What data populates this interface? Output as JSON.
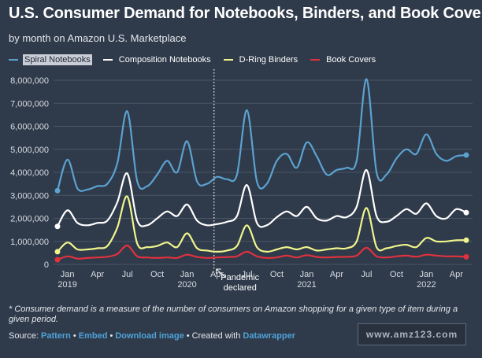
{
  "header": {
    "title": "U.S. Consumer Demand for Notebooks, Binders, and Book Covers",
    "subtitle": "by month on Amazon U.S. Marketplace"
  },
  "footer": {
    "footnote": "* Consumer demand is a measure of the number of consumers on Amazon shopping for a given type of item during a given period.",
    "source_prefix": "Source:",
    "link_pattern": "Pattern",
    "link_embed": "Embed",
    "link_download": "Download image",
    "created_with": "Created with",
    "link_datawrapper": "Datawrapper",
    "separator": "•",
    "watermark": "www.amz123.com"
  },
  "colors": {
    "background": "#2f3a4a",
    "spiral": "#5ba2d0",
    "composition": "#ffffff",
    "dring": "#f0f58c",
    "bookcovers": "#e0323e"
  },
  "chart_data": {
    "type": "line",
    "title": "U.S. Consumer Demand for Notebooks, Binders, and Book Covers",
    "subtitle": "by month on Amazon U.S. Marketplace",
    "xlabel": "",
    "ylabel": "",
    "ylim": [
      0,
      8000000
    ],
    "y_ticks": [
      0,
      1000000,
      2000000,
      3000000,
      4000000,
      5000000,
      6000000,
      7000000,
      8000000
    ],
    "y_tick_labels": [
      "0",
      "1,000,000",
      "2,000,000",
      "3,000,000",
      "4,000,000",
      "5,000,000",
      "6,000,000",
      "7,000,000",
      "8,000,000"
    ],
    "x_tick_labels": [
      {
        "index": 1,
        "label": "Jan",
        "year": "2019"
      },
      {
        "index": 4,
        "label": "Apr",
        "year": ""
      },
      {
        "index": 7,
        "label": "Jul",
        "year": ""
      },
      {
        "index": 10,
        "label": "Oct",
        "year": ""
      },
      {
        "index": 13,
        "label": "Jan",
        "year": "2020"
      },
      {
        "index": 16,
        "label": "Apr",
        "year": ""
      },
      {
        "index": 19,
        "label": "Jul",
        "year": ""
      },
      {
        "index": 22,
        "label": "Oct",
        "year": ""
      },
      {
        "index": 25,
        "label": "Jan",
        "year": "2021"
      },
      {
        "index": 28,
        "label": "Apr",
        "year": ""
      },
      {
        "index": 31,
        "label": "Jul",
        "year": ""
      },
      {
        "index": 34,
        "label": "Oct",
        "year": ""
      },
      {
        "index": 37,
        "label": "Jan",
        "year": "2022"
      },
      {
        "index": 40,
        "label": "Apr",
        "year": ""
      }
    ],
    "months": [
      "Dec 2018",
      "Jan 2019",
      "Feb 2019",
      "Mar 2019",
      "Apr 2019",
      "May 2019",
      "Jun 2019",
      "Jul 2019",
      "Aug 2019",
      "Sep 2019",
      "Oct 2019",
      "Nov 2019",
      "Dec 2019",
      "Jan 2020",
      "Feb 2020",
      "Mar 2020",
      "Apr 2020",
      "May 2020",
      "Jun 2020",
      "Jul 2020",
      "Aug 2020",
      "Sep 2020",
      "Oct 2020",
      "Nov 2020",
      "Dec 2020",
      "Jan 2021",
      "Feb 2021",
      "Mar 2021",
      "Apr 2021",
      "May 2021",
      "Jun 2021",
      "Jul 2021",
      "Aug 2021",
      "Sep 2021",
      "Oct 2021",
      "Nov 2021",
      "Dec 2021",
      "Jan 2022",
      "Feb 2022",
      "Mar 2022",
      "Apr 2022",
      "May 2022"
    ],
    "series": [
      {
        "name": "Spiral Notebooks",
        "color": "#5ba2d0",
        "values": [
          3200000,
          4550000,
          3300000,
          3250000,
          3400000,
          3500000,
          4400000,
          6650000,
          3600000,
          3400000,
          3900000,
          4500000,
          4000000,
          5350000,
          3600000,
          3500000,
          3800000,
          3700000,
          3900000,
          6700000,
          3600000,
          3500000,
          4500000,
          4800000,
          4200000,
          5300000,
          4700000,
          3900000,
          4100000,
          4200000,
          4500000,
          8050000,
          4000000,
          3900000,
          4600000,
          5000000,
          4800000,
          5650000,
          4800000,
          4500000,
          4700000,
          4750000
        ]
      },
      {
        "name": "Composition Notebooks",
        "color": "#ffffff",
        "values": [
          1650000,
          2350000,
          1800000,
          1700000,
          1800000,
          1900000,
          2700000,
          3950000,
          1900000,
          1700000,
          2000000,
          2300000,
          2100000,
          2600000,
          1900000,
          1700000,
          1750000,
          1850000,
          2100000,
          3450000,
          1800000,
          1700000,
          2050000,
          2300000,
          2100000,
          2500000,
          2000000,
          1900000,
          2100000,
          2050000,
          2500000,
          4100000,
          2100000,
          1850000,
          2100000,
          2400000,
          2200000,
          2650000,
          2100000,
          2000000,
          2400000,
          2250000
        ]
      },
      {
        "name": "D-Ring Binders",
        "color": "#f0f58c",
        "values": [
          550000,
          950000,
          650000,
          650000,
          700000,
          800000,
          1600000,
          2950000,
          900000,
          750000,
          800000,
          950000,
          750000,
          1350000,
          700000,
          600000,
          550000,
          600000,
          800000,
          1700000,
          750000,
          550000,
          650000,
          750000,
          650000,
          750000,
          600000,
          650000,
          700000,
          700000,
          1000000,
          2450000,
          750000,
          700000,
          800000,
          850000,
          750000,
          1150000,
          1000000,
          1000000,
          1050000,
          1050000
        ]
      },
      {
        "name": "Book Covers",
        "color": "#e0323e",
        "values": [
          200000,
          350000,
          250000,
          280000,
          300000,
          330000,
          450000,
          820000,
          350000,
          300000,
          280000,
          300000,
          280000,
          420000,
          320000,
          280000,
          300000,
          320000,
          350000,
          550000,
          350000,
          280000,
          300000,
          380000,
          300000,
          400000,
          320000,
          300000,
          320000,
          330000,
          380000,
          720000,
          350000,
          300000,
          350000,
          380000,
          330000,
          420000,
          380000,
          350000,
          350000,
          330000
        ]
      }
    ],
    "annotation": {
      "label_line1": "Pandemic",
      "label_line2": "declared",
      "at_index": 15.7
    },
    "grid": true,
    "legend_placement": "top-left"
  }
}
